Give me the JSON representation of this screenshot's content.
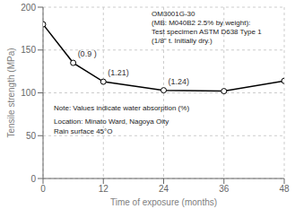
{
  "chart_data": {
    "type": "line",
    "title": [
      "OM3001G-30",
      "(MB: M040B2 2.5% by weight):",
      "Test specimen ASTM D638 Type 1",
      "(1/8\" t. Initially dry.)"
    ],
    "x": [
      0,
      6,
      12,
      24,
      36,
      48
    ],
    "values": [
      180,
      135,
      113,
      103,
      102,
      114
    ],
    "xlabel": "Time of exposure (months)",
    "ylabel": "Tensile strength (MPa)",
    "xlim": [
      0,
      48
    ],
    "ylim": [
      0,
      200
    ],
    "xticks": [
      0,
      12,
      24,
      36,
      48
    ],
    "yticks": [
      0,
      50,
      100,
      150,
      200
    ],
    "grid": true,
    "color": "#000000",
    "marker": "circle",
    "annotations": [
      {
        "x": 6,
        "y": 135,
        "text": "(0.9 )"
      },
      {
        "x": 12,
        "y": 113,
        "text": "(1.21)"
      },
      {
        "x": 24,
        "y": 103,
        "text": "(1.24)"
      },
      {
        "text": "Note: Values indicate water absorption (%)"
      },
      {
        "text": "Location: Minato Ward, Nagoya Oity"
      },
      {
        "text": "Rain surface 45°O"
      }
    ]
  }
}
